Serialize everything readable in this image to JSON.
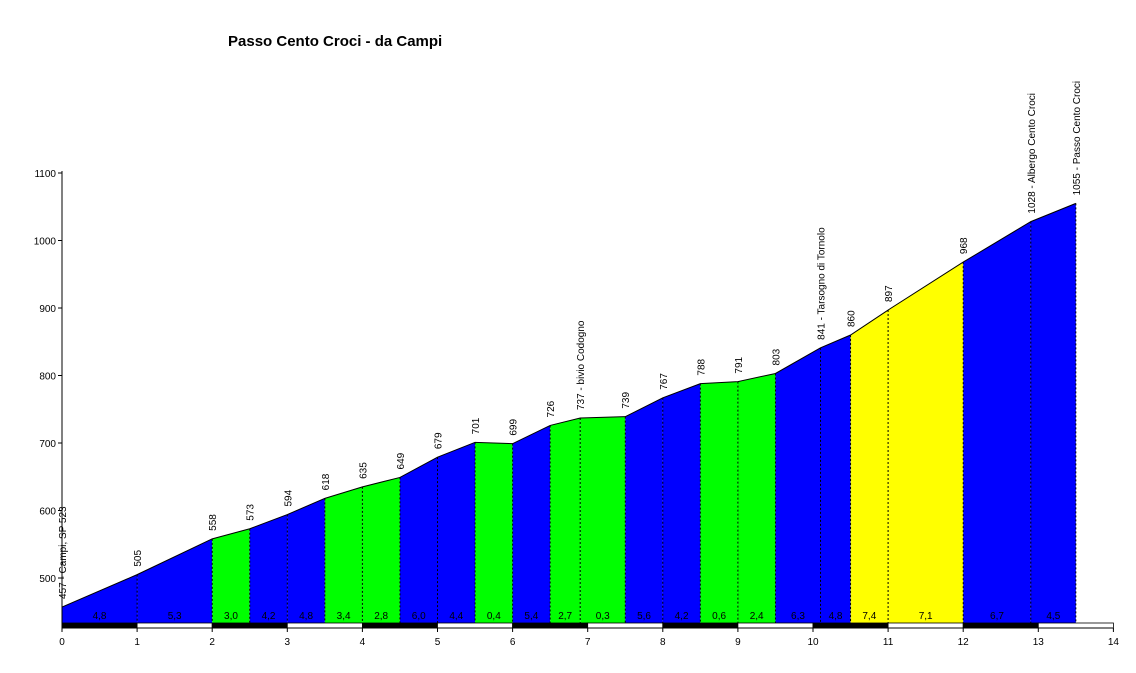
{
  "chart_data": {
    "type": "area",
    "title": "Passo Cento Croci - da Campi",
    "xlim": [
      0,
      14
    ],
    "ylim": [
      430,
      1100
    ],
    "x_ticks": [
      "0",
      "1",
      "2",
      "3",
      "4",
      "5",
      "6",
      "7",
      "8",
      "9",
      "10",
      "11",
      "12",
      "13",
      "14"
    ],
    "y_ticks": [
      "500",
      "600",
      "700",
      "800",
      "900",
      "1000",
      "1100"
    ],
    "profile": [
      {
        "x": 0,
        "y": 457
      },
      {
        "x": 1,
        "y": 505
      },
      {
        "x": 2,
        "y": 558
      },
      {
        "x": 2.5,
        "y": 573
      },
      {
        "x": 3,
        "y": 594
      },
      {
        "x": 3.5,
        "y": 618
      },
      {
        "x": 4,
        "y": 635
      },
      {
        "x": 4.5,
        "y": 649
      },
      {
        "x": 5,
        "y": 679
      },
      {
        "x": 5.5,
        "y": 701
      },
      {
        "x": 6,
        "y": 699
      },
      {
        "x": 6.5,
        "y": 726
      },
      {
        "x": 6.9,
        "y": 737
      },
      {
        "x": 7.5,
        "y": 739
      },
      {
        "x": 8,
        "y": 767
      },
      {
        "x": 8.5,
        "y": 788
      },
      {
        "x": 9,
        "y": 791
      },
      {
        "x": 9.5,
        "y": 803
      },
      {
        "x": 10.1,
        "y": 841
      },
      {
        "x": 10.5,
        "y": 860
      },
      {
        "x": 11,
        "y": 897
      },
      {
        "x": 12,
        "y": 968
      },
      {
        "x": 12.9,
        "y": 1028
      },
      {
        "x": 13.5,
        "y": 1055
      }
    ],
    "segments": [
      {
        "from": 0,
        "to": 1,
        "gradient": "4,8",
        "color": "#0000ff"
      },
      {
        "from": 1,
        "to": 2,
        "gradient": "5,3",
        "color": "#0000ff"
      },
      {
        "from": 2,
        "to": 2.5,
        "gradient": "3,0",
        "color": "#00ff00"
      },
      {
        "from": 2.5,
        "to": 3,
        "gradient": "4,2",
        "color": "#0000ff"
      },
      {
        "from": 3,
        "to": 3.5,
        "gradient": "4,8",
        "color": "#0000ff"
      },
      {
        "from": 3.5,
        "to": 4,
        "gradient": "3,4",
        "color": "#00ff00"
      },
      {
        "from": 4,
        "to": 4.5,
        "gradient": "2,8",
        "color": "#00ff00"
      },
      {
        "from": 4.5,
        "to": 5,
        "gradient": "6,0",
        "color": "#0000ff"
      },
      {
        "from": 5,
        "to": 5.5,
        "gradient": "4,4",
        "color": "#0000ff"
      },
      {
        "from": 5.5,
        "to": 6,
        "gradient": "0,4",
        "color": "#00ff00"
      },
      {
        "from": 6,
        "to": 6.5,
        "gradient": "5,4",
        "color": "#0000ff"
      },
      {
        "from": 6.5,
        "to": 6.9,
        "gradient": "2,7",
        "color": "#00ff00"
      },
      {
        "from": 6.9,
        "to": 7.5,
        "gradient": "0,3",
        "color": "#00ff00"
      },
      {
        "from": 7.5,
        "to": 8,
        "gradient": "5,6",
        "color": "#0000ff"
      },
      {
        "from": 8,
        "to": 8.5,
        "gradient": "4,2",
        "color": "#0000ff"
      },
      {
        "from": 8.5,
        "to": 9,
        "gradient": "0,6",
        "color": "#00ff00"
      },
      {
        "from": 9,
        "to": 9.5,
        "gradient": "2,4",
        "color": "#00ff00"
      },
      {
        "from": 9.5,
        "to": 10.1,
        "gradient": "6,3",
        "color": "#0000ff"
      },
      {
        "from": 10.1,
        "to": 10.5,
        "gradient": "4,8",
        "color": "#0000ff"
      },
      {
        "from": 10.5,
        "to": 11,
        "gradient": "7,4",
        "color": "#ffff00"
      },
      {
        "from": 11,
        "to": 12,
        "gradient": "7,1",
        "color": "#ffff00"
      },
      {
        "from": 12,
        "to": 12.9,
        "gradient": "6,7",
        "color": "#0000ff"
      },
      {
        "from": 12.9,
        "to": 13.5,
        "gradient": "4,5",
        "color": "#0000ff"
      }
    ],
    "elevation_labels": [
      {
        "x": 0,
        "y": 457,
        "text": "457 - Campi, SP 523"
      },
      {
        "x": 1,
        "y": 505,
        "text": "505"
      },
      {
        "x": 2,
        "y": 558,
        "text": "558"
      },
      {
        "x": 2.5,
        "y": 573,
        "text": "573"
      },
      {
        "x": 3,
        "y": 594,
        "text": "594"
      },
      {
        "x": 3.5,
        "y": 618,
        "text": "618"
      },
      {
        "x": 4,
        "y": 635,
        "text": "635"
      },
      {
        "x": 4.5,
        "y": 649,
        "text": "649"
      },
      {
        "x": 5,
        "y": 679,
        "text": "679"
      },
      {
        "x": 5.5,
        "y": 701,
        "text": "701"
      },
      {
        "x": 6,
        "y": 699,
        "text": "699"
      },
      {
        "x": 6.5,
        "y": 726,
        "text": "726"
      },
      {
        "x": 6.9,
        "y": 737,
        "text": "737 - bivio Codogno"
      },
      {
        "x": 7.5,
        "y": 739,
        "text": "739"
      },
      {
        "x": 8,
        "y": 767,
        "text": "767"
      },
      {
        "x": 8.5,
        "y": 788,
        "text": "788"
      },
      {
        "x": 9,
        "y": 791,
        "text": "791"
      },
      {
        "x": 9.5,
        "y": 803,
        "text": "803"
      },
      {
        "x": 10.1,
        "y": 841,
        "text": "841 - Tarsogno di Tornolo"
      },
      {
        "x": 10.5,
        "y": 860,
        "text": "860"
      },
      {
        "x": 11,
        "y": 897,
        "text": "897"
      },
      {
        "x": 12,
        "y": 968,
        "text": "968"
      },
      {
        "x": 12.9,
        "y": 1028,
        "text": "1028 - Albergo Cento Croci"
      },
      {
        "x": 13.5,
        "y": 1055,
        "text": "1055 - Passo Cento Croci"
      }
    ],
    "colors": {
      "gentle": "#00ff00",
      "moderate": "#0000ff",
      "steep": "#ffff00",
      "km_bar_dark": "#000000",
      "km_bar_light": "#ffffff"
    }
  }
}
